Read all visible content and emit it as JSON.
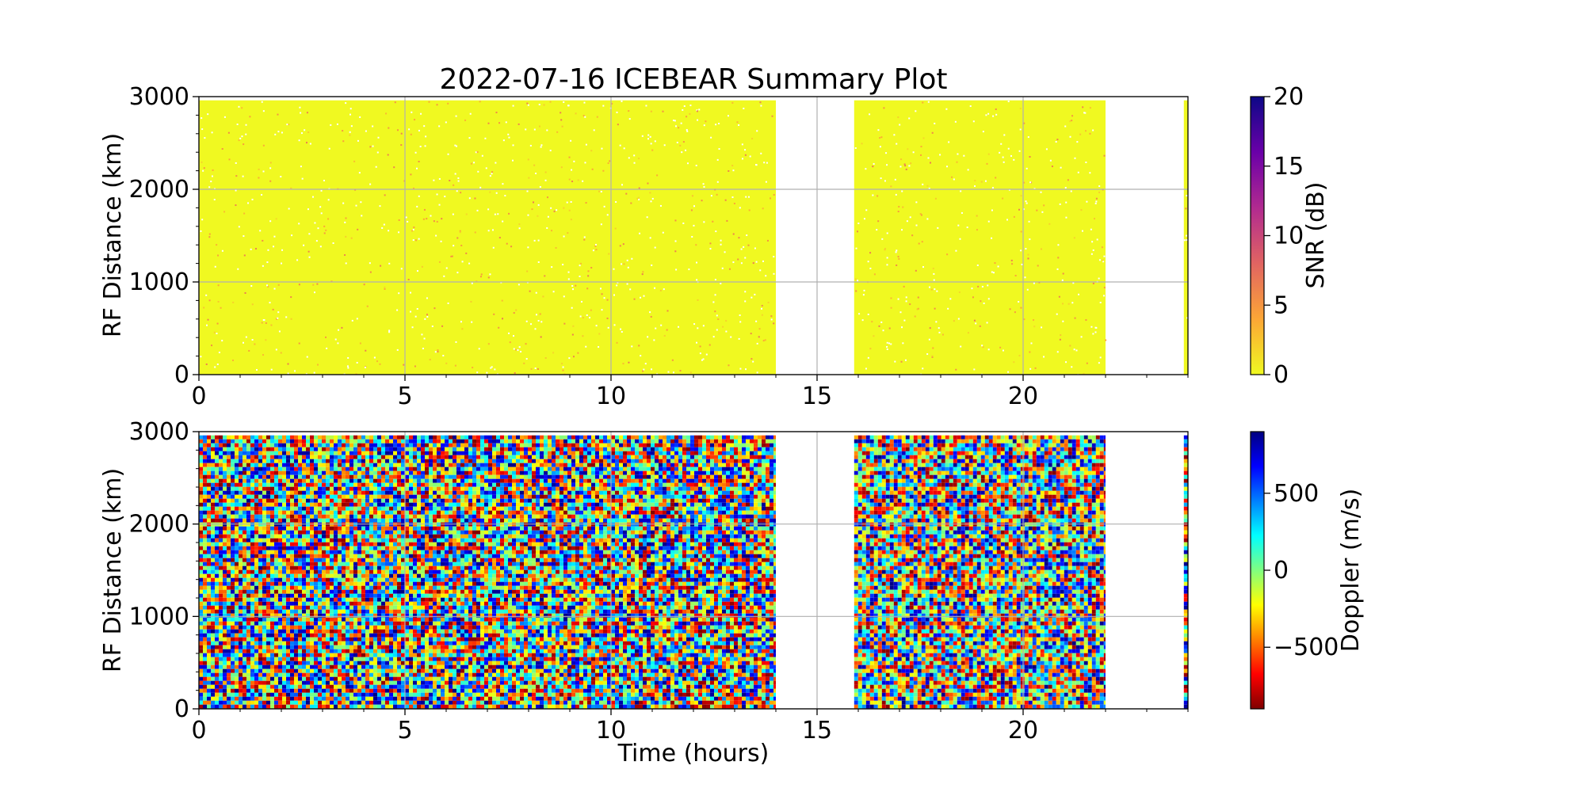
{
  "chart_data": {
    "title": "2022-07-16 ICEBEAR Summary Plot",
    "panels": [
      {
        "type": "heatmap",
        "name": "snr-panel",
        "ylabel": "RF Distance (km)",
        "xlim": [
          0,
          24
        ],
        "ylim": [
          0,
          3000
        ],
        "xticks": [
          0,
          5,
          10,
          15,
          20
        ],
        "yticks": [
          0,
          1000,
          2000,
          3000
        ],
        "grid": true,
        "x_tick_labels_shown": true,
        "data_coverage_hours": [
          [
            0,
            14.0
          ],
          [
            15.9,
            22.0
          ],
          [
            23.9,
            24.0
          ]
        ],
        "data_range_max_km": 2960,
        "dominant_value_db": 0,
        "colorbar": {
          "label": "SNR (dB)",
          "range": [
            0,
            20
          ],
          "ticks": [
            0,
            5,
            10,
            15,
            20
          ],
          "tick_labels": [
            "0",
            "5",
            "10",
            "15",
            "20"
          ],
          "colormap": "plasma_r",
          "colors": [
            "#f0f921",
            "#fca636",
            "#e16462",
            "#b12a90",
            "#6a00a8",
            "#0d0887"
          ]
        }
      },
      {
        "type": "heatmap",
        "name": "doppler-panel",
        "ylabel": "RF Distance (km)",
        "xlabel": "Time (hours)",
        "xlim": [
          0,
          24
        ],
        "ylim": [
          0,
          3000
        ],
        "xticks": [
          0,
          5,
          10,
          15,
          20
        ],
        "yticks": [
          0,
          1000,
          2000,
          3000
        ],
        "grid": true,
        "x_tick_labels_shown": true,
        "data_coverage_hours": [
          [
            0,
            14.0
          ],
          [
            15.9,
            22.0
          ],
          [
            23.9,
            24.0
          ]
        ],
        "data_range_max_km": 2960,
        "value_distribution": "uniform random across range",
        "colorbar": {
          "label": "Doppler (m/s)",
          "range": [
            -900,
            900
          ],
          "ticks": [
            -500,
            0,
            500
          ],
          "tick_labels": [
            "−500",
            "0",
            "500"
          ],
          "colormap": "jet_r",
          "colors": [
            "#800000",
            "#ff0000",
            "#ff8000",
            "#ffff00",
            "#80ff80",
            "#00ffff",
            "#0080ff",
            "#0000ff",
            "#000080"
          ]
        }
      }
    ]
  }
}
